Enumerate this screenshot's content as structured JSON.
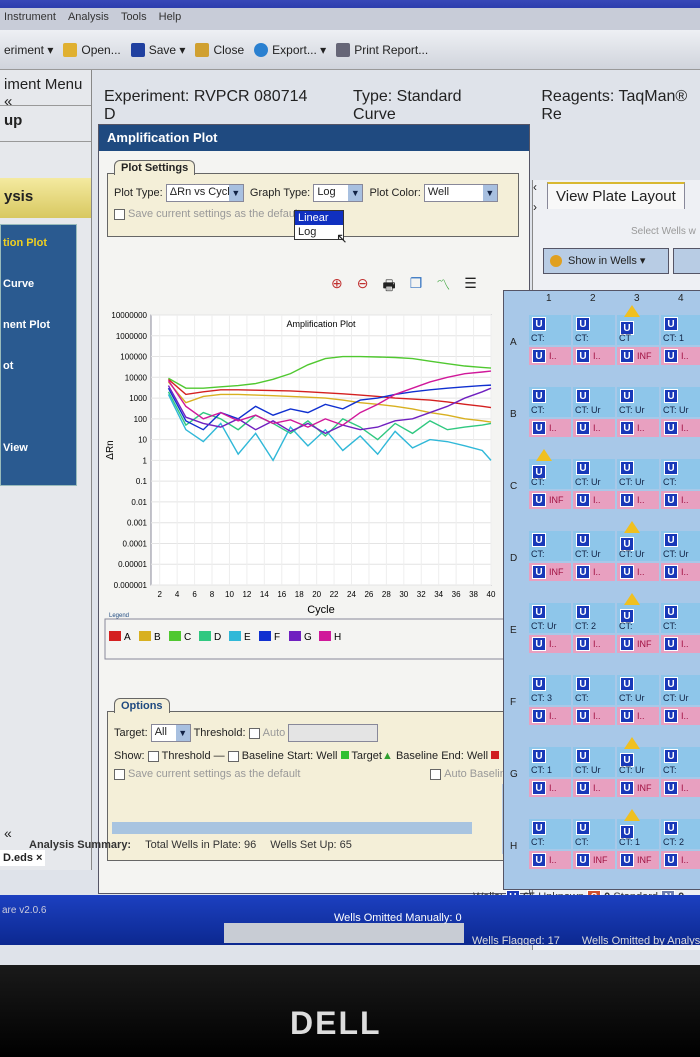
{
  "menu": [
    "Instrument",
    "Analysis",
    "Tools",
    "Help"
  ],
  "toolbar": {
    "experiment": "eriment ▾",
    "open": "Open...",
    "save": "Save ▾",
    "close": "Close",
    "export": "Export... ▾",
    "print": "Print Report..."
  },
  "sidebar": {
    "menu_title": "iment Menu «",
    "setup": "up",
    "analysis": "ysis",
    "items": [
      "tion Plot",
      "Curve",
      "nent Plot",
      "ot",
      "",
      "View"
    ],
    "collapse": "«"
  },
  "header": {
    "experiment_label": "Experiment:",
    "experiment": "RVPCR 080714 D",
    "type_label": "Type:",
    "type": "Standard Curve",
    "reagents_label": "Reagents:",
    "reagents": "TaqMan® Re"
  },
  "panel": {
    "title": "Amplification Plot",
    "plot_settings": {
      "tab": "Plot Settings",
      "plot_type_label": "Plot Type:",
      "plot_type": "ΔRn vs Cycle",
      "graph_type_label": "Graph Type:",
      "graph_type": "Log",
      "graph_options": [
        "Linear",
        "Log"
      ],
      "highlighted_option": "Linear",
      "plot_color_label": "Plot Color:",
      "plot_color": "Well",
      "save_default": "Save current settings as the default"
    },
    "tools": [
      "zoom-in-icon",
      "zoom-out-icon",
      "print-icon",
      "copy-icon",
      "chart-icon",
      "legend-icon"
    ],
    "options": {
      "tab": "Options",
      "target_label": "Target:",
      "target": "All",
      "threshold_label": "Threshold:",
      "auto": "Auto",
      "show_label": "Show:",
      "threshold": "Threshold",
      "baseline_start": "Baseline Start: Well",
      "target_marker": "Target",
      "baseline_end": "Baseline End: Well",
      "auto_baseline": "Auto Baseline",
      "save_default": "Save current settings as the default"
    }
  },
  "chart_data": {
    "type": "line",
    "title": "Amplification Plot",
    "xlabel": "Cycle",
    "ylabel": "ΔRn",
    "yscale": "log",
    "ylim": [
      1e-06,
      10000000
    ],
    "yticks": [
      "10000000",
      "1000000",
      "100000",
      "10000",
      "1000",
      "100",
      "10",
      "1",
      "0.1",
      "0.01",
      "0.001",
      "0.0001",
      "0.00001",
      "0.000001"
    ],
    "xlim": [
      1,
      40
    ],
    "xticks": [
      "2",
      "4",
      "6",
      "8",
      "10",
      "12",
      "14",
      "16",
      "18",
      "20",
      "22",
      "24",
      "26",
      "28",
      "30",
      "32",
      "34",
      "36",
      "38",
      "40"
    ],
    "grid": true,
    "legend_title": "Legend",
    "legend_placement": "bottom",
    "x": [
      3,
      5,
      7,
      9,
      11,
      13,
      15,
      17,
      19,
      21,
      23,
      25,
      27,
      29,
      31,
      33,
      35,
      37,
      39,
      40
    ],
    "series": [
      {
        "name": "A",
        "color": "#d42020",
        "values": [
          8000,
          1500,
          2000,
          2500,
          2500,
          2400,
          2300,
          2200,
          2000,
          1800,
          1600,
          1400,
          1200,
          1000,
          900,
          800,
          650,
          500,
          400,
          350
        ]
      },
      {
        "name": "B",
        "color": "#d8b020",
        "values": [
          6000,
          600,
          1200,
          1500,
          1500,
          1400,
          1300,
          1200,
          1100,
          1000,
          800,
          600,
          500,
          400,
          300,
          200,
          150,
          100,
          80,
          70
        ]
      },
      {
        "name": "C",
        "color": "#50c830",
        "values": [
          9000,
          3000,
          3000,
          3500,
          4000,
          5000,
          8000,
          15000,
          40000,
          80000,
          100000,
          100000,
          95000,
          90000,
          80000,
          60000,
          45000,
          35000,
          30000,
          28000
        ]
      },
      {
        "name": "D",
        "color": "#30c880",
        "values": [
          2000,
          50,
          200,
          100,
          30,
          150,
          60,
          20,
          80,
          15,
          100,
          40,
          10,
          60,
          20,
          80,
          30,
          40,
          50,
          60
        ]
      },
      {
        "name": "E",
        "color": "#30b8d8",
        "values": [
          1500,
          30,
          8,
          60,
          2,
          20,
          1,
          40,
          5,
          30,
          3,
          15,
          2,
          25,
          4,
          10,
          8,
          5,
          3,
          1
        ]
      },
      {
        "name": "F",
        "color": "#1030d0",
        "values": [
          3000,
          80,
          30,
          200,
          100,
          400,
          150,
          300,
          200,
          500,
          300,
          800,
          1000,
          1500,
          2000,
          2500,
          3000,
          3500,
          4000,
          4200
        ]
      },
      {
        "name": "G",
        "color": "#7020c0",
        "values": [
          4000,
          120,
          60,
          40,
          100,
          30,
          80,
          25,
          60,
          20,
          50,
          30,
          40,
          80,
          100,
          200,
          400,
          1000,
          2000,
          3000
        ]
      },
      {
        "name": "H",
        "color": "#d0189a",
        "values": [
          7000,
          400,
          100,
          200,
          80,
          150,
          60,
          90,
          40,
          100,
          50,
          200,
          500,
          1500,
          3000,
          6000,
          10000,
          15000,
          18000,
          20000
        ]
      }
    ]
  },
  "summary": {
    "label": "Analysis Summary:",
    "total": "Total Wells in Plate: 96",
    "setup": "Wells Set Up: 65",
    "omitted": "Wells Omitted Manually: 0",
    "flagged": "Wells Flagged: 17",
    "omitted_analysis": "Wells Omitted by Analysis"
  },
  "file_tab": "D.eds ×",
  "version": "are v2.0.6",
  "right": {
    "tab": "View Plate Layout",
    "select_hint": "Select Wells w",
    "show_in_wells": "Show in Wells ▾",
    "plate": {
      "columns": [
        "1",
        "2",
        "3",
        "4"
      ],
      "rows": [
        "A",
        "B",
        "C",
        "D",
        "E",
        "F",
        "G",
        "H"
      ],
      "well_symbol": "U",
      "wells": [
        [
          {
            "t": "CT:",
            "b": "I.."
          },
          {
            "t": "CT:",
            "b": "I.."
          },
          {
            "t": "CT",
            "b": "INF",
            "flag": true
          },
          {
            "t": "CT: 1",
            "b": "I.."
          }
        ],
        [
          {
            "t": "CT:",
            "b": "I.."
          },
          {
            "t": "CT: Ur",
            "b": "I.."
          },
          {
            "t": "CT: Ur",
            "b": "I.."
          },
          {
            "t": "CT: Ur",
            "b": "I.."
          }
        ],
        [
          {
            "t": "CT:",
            "b": "INF",
            "flag": true
          },
          {
            "t": "CT: Ur",
            "b": "I.."
          },
          {
            "t": "CT: Ur",
            "b": "I.."
          },
          {
            "t": "CT:",
            "b": "I.."
          }
        ],
        [
          {
            "t": "CT:",
            "b": "INF"
          },
          {
            "t": "CT: Ur",
            "b": "I.."
          },
          {
            "t": "CT: Ur",
            "b": "I..",
            "flag": true
          },
          {
            "t": "CT: Ur",
            "b": "I.."
          }
        ],
        [
          {
            "t": "CT: Ur",
            "b": "I.."
          },
          {
            "t": "CT: 2",
            "b": "I.."
          },
          {
            "t": "CT:",
            "b": "INF",
            "flag": true
          },
          {
            "t": "CT:",
            "b": "I.."
          }
        ],
        [
          {
            "t": "CT: 3",
            "b": "I.."
          },
          {
            "t": "CT:",
            "b": "I.."
          },
          {
            "t": "CT: Ur",
            "b": "I.."
          },
          {
            "t": "CT: Ur",
            "b": "I.."
          }
        ],
        [
          {
            "t": "CT: 1",
            "b": "I.."
          },
          {
            "t": "CT: Ur",
            "b": "I.."
          },
          {
            "t": "CT: Ur",
            "b": "INF",
            "flag": true
          },
          {
            "t": "CT:",
            "b": "I.."
          }
        ],
        [
          {
            "t": "CT:",
            "b": "I.."
          },
          {
            "t": "CT:",
            "b": "INF"
          },
          {
            "t": "CT: 1",
            "b": "INF",
            "flag": true
          },
          {
            "t": "CT: 2",
            "b": "I.."
          }
        ]
      ]
    },
    "wells_label": "Wells:",
    "unknown_count": "65",
    "unknown": "Unknown",
    "standard_count": "0",
    "standard": "Standard",
    "ntc_count": "0",
    "unknown_symbol": "U",
    "standard_symbol": "S",
    "ntc_symbol": "N"
  },
  "brand": "DELL"
}
